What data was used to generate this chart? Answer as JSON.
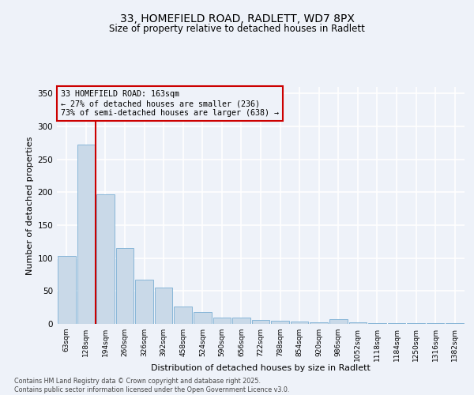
{
  "title_line1": "33, HOMEFIELD ROAD, RADLETT, WD7 8PX",
  "title_line2": "Size of property relative to detached houses in Radlett",
  "xlabel": "Distribution of detached houses by size in Radlett",
  "ylabel": "Number of detached properties",
  "categories": [
    "63sqm",
    "128sqm",
    "194sqm",
    "260sqm",
    "326sqm",
    "392sqm",
    "458sqm",
    "524sqm",
    "590sqm",
    "656sqm",
    "722sqm",
    "788sqm",
    "854sqm",
    "920sqm",
    "986sqm",
    "1052sqm",
    "1118sqm",
    "1184sqm",
    "1250sqm",
    "1316sqm",
    "1382sqm"
  ],
  "values": [
    103,
    272,
    197,
    115,
    67,
    55,
    27,
    18,
    10,
    10,
    6,
    5,
    4,
    2,
    7,
    2,
    1,
    1,
    1,
    1,
    1
  ],
  "bar_color": "#c9d9e8",
  "bar_edge_color": "#7bafd4",
  "vline_x": 1.5,
  "vline_color": "#cc0000",
  "annotation_text": "33 HOMEFIELD ROAD: 163sqm\n← 27% of detached houses are smaller (236)\n73% of semi-detached houses are larger (638) →",
  "annotation_box_color": "#cc0000",
  "ylim": [
    0,
    360
  ],
  "yticks": [
    0,
    50,
    100,
    150,
    200,
    250,
    300,
    350
  ],
  "bg_color": "#eef2f9",
  "grid_color": "#ffffff",
  "footnote": "Contains HM Land Registry data © Crown copyright and database right 2025.\nContains public sector information licensed under the Open Government Licence v3.0."
}
